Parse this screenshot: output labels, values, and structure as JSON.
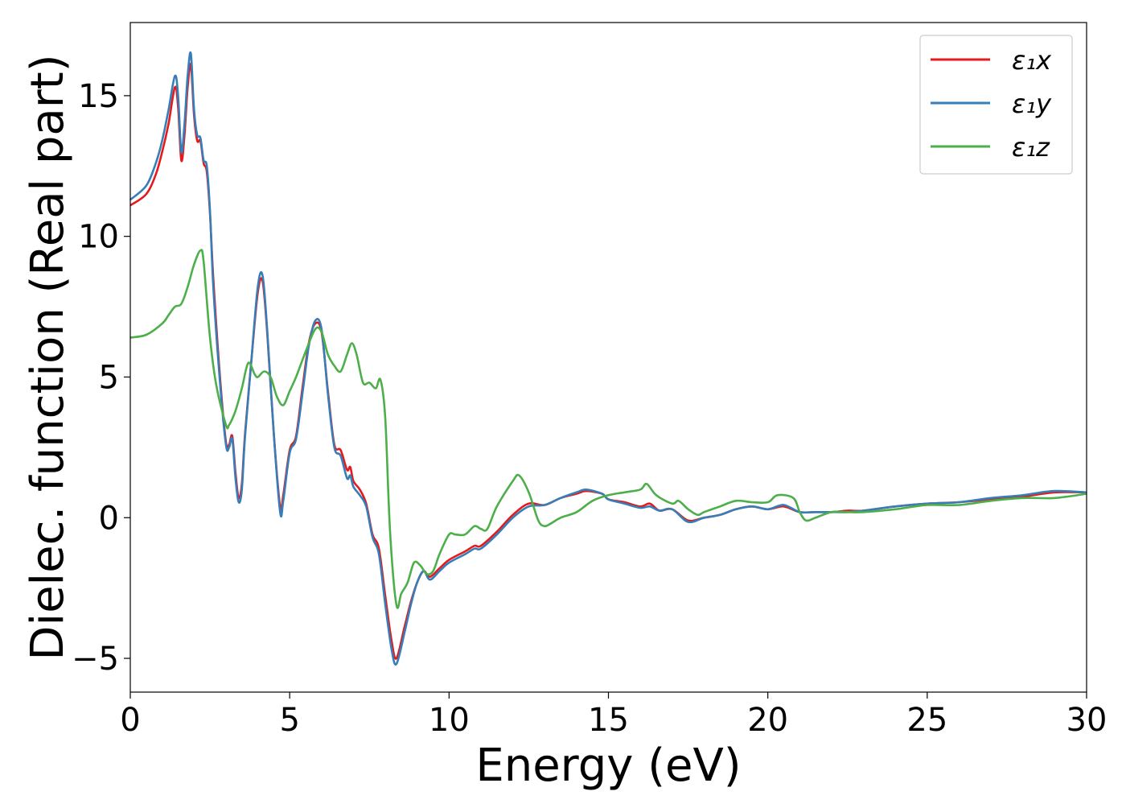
{
  "chart_data": {
    "type": "line",
    "xlabel": "Energy (eV)",
    "ylabel": "Dielec. function (Real part)",
    "xlim": [
      0,
      30
    ],
    "ylim": [
      -6.2,
      17.6
    ],
    "xticks": [
      0,
      5,
      10,
      15,
      20,
      25,
      30
    ],
    "xtick_labels": [
      "0",
      "5",
      "10",
      "15",
      "20",
      "25",
      "30"
    ],
    "yticks": [
      -5,
      0,
      5,
      10,
      15
    ],
    "ytick_labels": [
      "−5",
      "0",
      "5",
      "10",
      "15"
    ],
    "grid": false,
    "legend_position": "top-right",
    "series": [
      {
        "name": "ε₁x",
        "color": "#e41a1c",
        "x": [
          0,
          0.5,
          0.8,
          1.0,
          1.2,
          1.4,
          1.5,
          1.6,
          1.7,
          1.8,
          1.9,
          2.0,
          2.1,
          2.2,
          2.3,
          2.4,
          2.5,
          2.6,
          2.8,
          3.0,
          3.1,
          3.2,
          3.3,
          3.4,
          3.5,
          3.6,
          3.8,
          4.0,
          4.15,
          4.3,
          4.5,
          4.7,
          4.8,
          5.0,
          5.2,
          5.4,
          5.6,
          5.8,
          6.0,
          6.2,
          6.4,
          6.6,
          6.8,
          6.9,
          7.0,
          7.2,
          7.4,
          7.6,
          7.8,
          8.0,
          8.2,
          8.35,
          8.6,
          8.8,
          9.0,
          9.2,
          9.4,
          9.7,
          10.0,
          10.5,
          10.8,
          11.0,
          11.5,
          12.0,
          12.5,
          13.0,
          13.5,
          14.0,
          14.3,
          14.8,
          15.0,
          15.5,
          16.0,
          16.3,
          16.6,
          17.0,
          17.5,
          18.0,
          18.5,
          19.0,
          19.5,
          20.0,
          20.5,
          21.0,
          21.5,
          22.0,
          22.5,
          23.0,
          24.0,
          25.0,
          26.0,
          27.0,
          28.0,
          29.0,
          30.0
        ],
        "values": [
          11.1,
          11.5,
          12.2,
          13.0,
          14.0,
          15.3,
          14.6,
          12.7,
          13.6,
          15.3,
          16.1,
          14.3,
          13.4,
          13.4,
          12.6,
          12.3,
          10.8,
          8.6,
          5.2,
          2.7,
          2.6,
          2.9,
          1.6,
          0.7,
          1.2,
          3.0,
          5.6,
          8.0,
          8.4,
          6.5,
          3.0,
          0.4,
          0.8,
          2.4,
          2.9,
          4.6,
          6.2,
          6.9,
          6.6,
          4.5,
          2.6,
          2.4,
          1.7,
          1.8,
          1.3,
          1.0,
          0.5,
          -0.6,
          -1.1,
          -2.8,
          -4.4,
          -5.0,
          -3.9,
          -3.0,
          -2.3,
          -1.9,
          -2.1,
          -1.8,
          -1.5,
          -1.2,
          -1.0,
          -1.0,
          -0.5,
          0.1,
          0.5,
          0.45,
          0.7,
          0.85,
          0.95,
          0.85,
          0.65,
          0.55,
          0.4,
          0.5,
          0.25,
          0.3,
          -0.1,
          0.0,
          0.1,
          0.3,
          0.4,
          0.3,
          0.4,
          0.2,
          0.2,
          0.2,
          0.25,
          0.25,
          0.4,
          0.5,
          0.55,
          0.65,
          0.75,
          0.9,
          0.9
        ]
      },
      {
        "name": "ε₁y",
        "color": "#377eb8",
        "x": [
          0,
          0.5,
          0.8,
          1.0,
          1.2,
          1.4,
          1.5,
          1.6,
          1.7,
          1.8,
          1.9,
          2.0,
          2.1,
          2.2,
          2.3,
          2.4,
          2.5,
          2.6,
          2.8,
          3.0,
          3.1,
          3.2,
          3.3,
          3.4,
          3.5,
          3.6,
          3.8,
          4.0,
          4.15,
          4.3,
          4.5,
          4.7,
          4.8,
          5.0,
          5.2,
          5.4,
          5.6,
          5.8,
          6.0,
          6.2,
          6.4,
          6.6,
          6.8,
          6.9,
          7.0,
          7.2,
          7.4,
          7.6,
          7.8,
          8.0,
          8.2,
          8.35,
          8.6,
          8.8,
          9.0,
          9.2,
          9.4,
          9.7,
          10.0,
          10.5,
          10.8,
          11.0,
          11.5,
          12.0,
          12.5,
          13.0,
          13.5,
          14.0,
          14.3,
          14.8,
          15.0,
          15.5,
          16.0,
          16.3,
          16.6,
          17.0,
          17.5,
          18.0,
          18.5,
          19.0,
          19.5,
          20.0,
          20.5,
          21.0,
          21.5,
          22.0,
          22.5,
          23.0,
          24.0,
          25.0,
          26.0,
          27.0,
          28.0,
          29.0,
          30.0
        ],
        "values": [
          11.3,
          11.8,
          12.6,
          13.4,
          14.5,
          15.7,
          15.0,
          13.0,
          14.0,
          15.7,
          16.5,
          14.5,
          13.6,
          13.5,
          12.7,
          12.5,
          10.9,
          8.3,
          5.0,
          2.6,
          2.5,
          2.8,
          1.4,
          0.55,
          1.0,
          2.9,
          5.6,
          8.2,
          8.6,
          6.6,
          3.0,
          0.2,
          0.6,
          2.3,
          2.8,
          4.4,
          6.1,
          7.0,
          6.7,
          4.4,
          2.5,
          2.2,
          1.4,
          1.5,
          1.1,
          0.8,
          0.4,
          -0.7,
          -1.3,
          -3.1,
          -4.7,
          -5.2,
          -4.1,
          -3.1,
          -2.3,
          -1.9,
          -2.2,
          -1.9,
          -1.6,
          -1.3,
          -1.1,
          -1.1,
          -0.6,
          0.0,
          0.4,
          0.45,
          0.7,
          0.9,
          1.0,
          0.85,
          0.65,
          0.5,
          0.35,
          0.4,
          0.25,
          0.3,
          -0.15,
          0.0,
          0.1,
          0.3,
          0.4,
          0.3,
          0.45,
          0.2,
          0.2,
          0.2,
          0.2,
          0.25,
          0.4,
          0.5,
          0.55,
          0.7,
          0.8,
          0.95,
          0.9
        ]
      },
      {
        "name": "ε₁z",
        "color": "#4daf4a",
        "x": [
          0,
          0.5,
          1.0,
          1.2,
          1.4,
          1.6,
          1.8,
          2.0,
          2.2,
          2.3,
          2.5,
          2.7,
          3.0,
          3.1,
          3.3,
          3.5,
          3.7,
          3.9,
          4.0,
          4.2,
          4.4,
          4.6,
          4.8,
          5.0,
          5.2,
          5.5,
          5.8,
          6.0,
          6.2,
          6.4,
          6.6,
          6.8,
          6.95,
          7.1,
          7.3,
          7.5,
          7.7,
          7.85,
          8.0,
          8.15,
          8.35,
          8.5,
          8.7,
          8.9,
          9.1,
          9.3,
          9.5,
          9.7,
          10.0,
          10.2,
          10.5,
          10.8,
          11.0,
          11.2,
          11.5,
          12.0,
          12.2,
          12.5,
          12.8,
          13.0,
          13.2,
          13.5,
          14.0,
          14.5,
          15.0,
          15.5,
          16.0,
          16.2,
          16.5,
          17.0,
          17.2,
          17.5,
          17.8,
          18.0,
          18.5,
          19.0,
          19.5,
          20.0,
          20.3,
          20.8,
          21.0,
          21.2,
          21.5,
          22.0,
          22.5,
          23.0,
          24.0,
          25.0,
          26.0,
          27.0,
          28.0,
          29.0,
          30.0
        ],
        "values": [
          6.4,
          6.5,
          6.9,
          7.2,
          7.5,
          7.6,
          8.2,
          9.0,
          9.5,
          9.1,
          6.4,
          4.7,
          3.3,
          3.3,
          3.8,
          4.6,
          5.5,
          5.1,
          5.0,
          5.2,
          5.0,
          4.3,
          4.0,
          4.5,
          5.0,
          5.9,
          6.7,
          6.6,
          5.8,
          5.4,
          5.2,
          5.8,
          6.2,
          5.8,
          4.8,
          4.8,
          4.6,
          4.9,
          3.5,
          -0.5,
          -3.1,
          -2.7,
          -2.3,
          -1.6,
          -1.7,
          -2.0,
          -1.9,
          -1.3,
          -0.6,
          -0.6,
          -0.6,
          -0.3,
          -0.4,
          -0.4,
          0.4,
          1.3,
          1.5,
          0.9,
          -0.1,
          -0.3,
          -0.2,
          0.0,
          0.2,
          0.6,
          0.8,
          0.9,
          1.0,
          1.2,
          0.8,
          0.5,
          0.6,
          0.3,
          0.1,
          0.2,
          0.4,
          0.6,
          0.55,
          0.55,
          0.8,
          0.7,
          0.2,
          -0.1,
          0.0,
          0.2,
          0.2,
          0.2,
          0.3,
          0.45,
          0.45,
          0.6,
          0.7,
          0.7,
          0.85
        ]
      }
    ]
  }
}
